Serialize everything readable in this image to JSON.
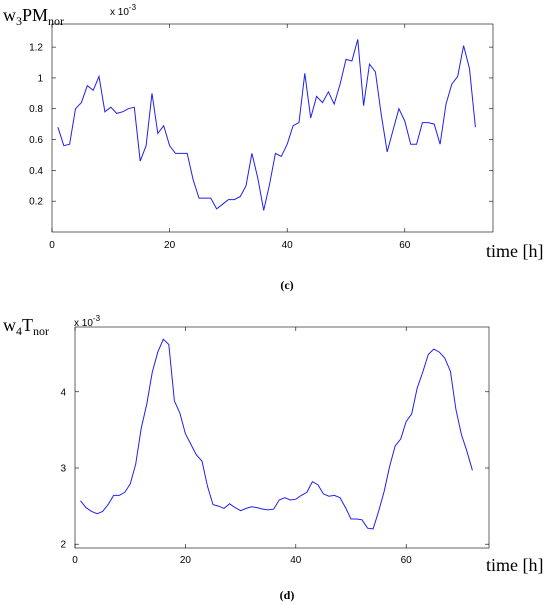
{
  "chart_data": [
    {
      "type": "line",
      "panel": "c",
      "caption": "(c)",
      "ylabel": {
        "base": "w",
        "sub1": "3",
        "main": "PM",
        "sub2": "nor"
      },
      "scale": {
        "base": "x 10",
        "exp": "-3"
      },
      "xlabel": "time [h]",
      "xlim": [
        0,
        75
      ],
      "ylim": [
        0,
        1.35
      ],
      "xticks": [
        0,
        20,
        40,
        60
      ],
      "yticks": [
        0.2,
        0.4,
        0.6,
        0.8,
        1,
        1.2
      ],
      "ytick_labels": [
        "0.2",
        "0.4",
        "0.6",
        "0.8",
        "1",
        "1.2"
      ],
      "grid": false,
      "color": "#2020ee",
      "x": [
        1,
        2,
        3,
        4,
        5,
        6,
        7,
        8,
        9,
        10,
        11,
        12,
        13,
        14,
        15,
        16,
        17,
        18,
        19,
        20,
        21,
        22,
        23,
        24,
        25,
        26,
        27,
        28,
        29,
        30,
        31,
        32,
        33,
        34,
        35,
        36,
        37,
        38,
        39,
        40,
        41,
        42,
        43,
        44,
        45,
        46,
        47,
        48,
        49,
        50,
        51,
        52,
        53,
        54,
        55,
        56,
        57,
        58,
        59,
        60,
        61,
        62,
        63,
        64,
        65,
        66,
        67,
        68,
        69,
        70,
        71,
        72
      ],
      "values": [
        0.68,
        0.56,
        0.57,
        0.8,
        0.84,
        0.95,
        0.92,
        1.01,
        0.78,
        0.81,
        0.77,
        0.78,
        0.8,
        0.81,
        0.46,
        0.56,
        0.9,
        0.64,
        0.69,
        0.56,
        0.51,
        0.51,
        0.51,
        0.34,
        0.22,
        0.22,
        0.22,
        0.15,
        0.18,
        0.21,
        0.21,
        0.23,
        0.3,
        0.51,
        0.35,
        0.14,
        0.31,
        0.51,
        0.49,
        0.57,
        0.69,
        0.71,
        1.03,
        0.74,
        0.88,
        0.84,
        0.91,
        0.83,
        0.96,
        1.12,
        1.11,
        1.25,
        0.82,
        1.09,
        1.04,
        0.76,
        0.52,
        0.66,
        0.8,
        0.72,
        0.57,
        0.57,
        0.71,
        0.71,
        0.7,
        0.57,
        0.83,
        0.96,
        1.01,
        1.21,
        1.06,
        0.68
      ]
    },
    {
      "type": "line",
      "panel": "d",
      "caption": "(d)",
      "ylabel": {
        "base": "w",
        "sub1": "4",
        "main": "T",
        "sub2": "nor"
      },
      "scale": {
        "base": "x 10",
        "exp": "-3"
      },
      "xlabel": "time [h]",
      "xlim": [
        0,
        75
      ],
      "ylim": [
        0.00195,
        0.00485
      ],
      "xticks": [
        0,
        20,
        40,
        60
      ],
      "yticks": [
        0.002,
        0.003,
        0.004
      ],
      "ytick_labels": [
        "2",
        "3",
        "4"
      ],
      "grid": false,
      "color": "#2020ee",
      "x": [
        1,
        2,
        3,
        4,
        5,
        6,
        7,
        8,
        9,
        10,
        11,
        12,
        13,
        14,
        15,
        16,
        17,
        18,
        19,
        20,
        21,
        22,
        23,
        24,
        25,
        26,
        27,
        28,
        29,
        30,
        31,
        32,
        33,
        34,
        35,
        36,
        37,
        38,
        39,
        40,
        41,
        42,
        43,
        44,
        45,
        46,
        47,
        48,
        49,
        50,
        51,
        52,
        53,
        54,
        55,
        56,
        57,
        58,
        59,
        60,
        61,
        62,
        63,
        64,
        65,
        66,
        67,
        68,
        69,
        70,
        71,
        72
      ],
      "values": [
        0.00257,
        0.00248,
        0.00243,
        0.0024,
        0.00243,
        0.00252,
        0.00264,
        0.00264,
        0.00268,
        0.00279,
        0.00305,
        0.00352,
        0.00384,
        0.00426,
        0.00452,
        0.00469,
        0.00462,
        0.00388,
        0.00372,
        0.00345,
        0.00331,
        0.00317,
        0.00309,
        0.00276,
        0.00252,
        0.0025,
        0.00247,
        0.00253,
        0.00248,
        0.00244,
        0.00247,
        0.00249,
        0.00248,
        0.00246,
        0.00245,
        0.00246,
        0.00258,
        0.00261,
        0.00258,
        0.00259,
        0.00264,
        0.00268,
        0.00282,
        0.00278,
        0.00266,
        0.00263,
        0.00264,
        0.00261,
        0.00248,
        0.00233,
        0.00233,
        0.00232,
        0.00221,
        0.0022,
        0.00243,
        0.00269,
        0.00302,
        0.00329,
        0.00338,
        0.00361,
        0.00371,
        0.00405,
        0.00426,
        0.00449,
        0.00456,
        0.00452,
        0.00444,
        0.00427,
        0.00377,
        0.00344,
        0.00322,
        0.00297
      ]
    }
  ]
}
